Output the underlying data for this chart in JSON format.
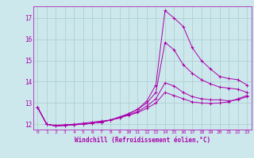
{
  "background_color": "#cce8ec",
  "grid_color": "#aacccc",
  "line_color": "#aa00aa",
  "xlabel": "Windchill (Refroidissement éolien,°C)",
  "ylim": [
    11.75,
    17.55
  ],
  "xlim": [
    -0.5,
    23.5
  ],
  "yticks": [
    12,
    13,
    14,
    15,
    16,
    17
  ],
  "xticks": [
    0,
    1,
    2,
    3,
    4,
    5,
    6,
    7,
    8,
    9,
    10,
    11,
    12,
    13,
    14,
    15,
    16,
    17,
    18,
    19,
    20,
    21,
    22,
    23
  ],
  "series": [
    [
      12.8,
      12.0,
      11.95,
      11.98,
      12.0,
      12.05,
      12.1,
      12.15,
      12.2,
      12.3,
      12.5,
      12.7,
      13.1,
      13.85,
      17.35,
      17.0,
      16.6,
      15.6,
      15.0,
      14.6,
      14.25,
      14.15,
      14.1,
      13.85
    ],
    [
      12.8,
      12.0,
      11.92,
      11.95,
      11.98,
      12.0,
      12.05,
      12.1,
      12.2,
      12.35,
      12.5,
      12.7,
      13.0,
      13.5,
      15.85,
      15.5,
      14.8,
      14.4,
      14.1,
      13.9,
      13.75,
      13.7,
      13.65,
      13.5
    ],
    [
      12.8,
      12.0,
      11.92,
      11.95,
      11.98,
      12.0,
      12.05,
      12.1,
      12.2,
      12.3,
      12.45,
      12.6,
      12.85,
      13.2,
      13.95,
      13.8,
      13.5,
      13.3,
      13.2,
      13.15,
      13.15,
      13.1,
      13.15,
      13.3
    ],
    [
      12.8,
      12.0,
      11.92,
      11.95,
      11.98,
      12.0,
      12.05,
      12.1,
      12.2,
      12.3,
      12.42,
      12.55,
      12.75,
      13.0,
      13.5,
      13.35,
      13.2,
      13.05,
      13.0,
      12.98,
      13.0,
      13.05,
      13.2,
      13.35
    ]
  ],
  "xlabel_fontsize": 5.5,
  "ylabel_fontsize": 5.5,
  "xlabel_tick_fontsize": 4.5,
  "ylabel_tick_fontsize": 5.5
}
